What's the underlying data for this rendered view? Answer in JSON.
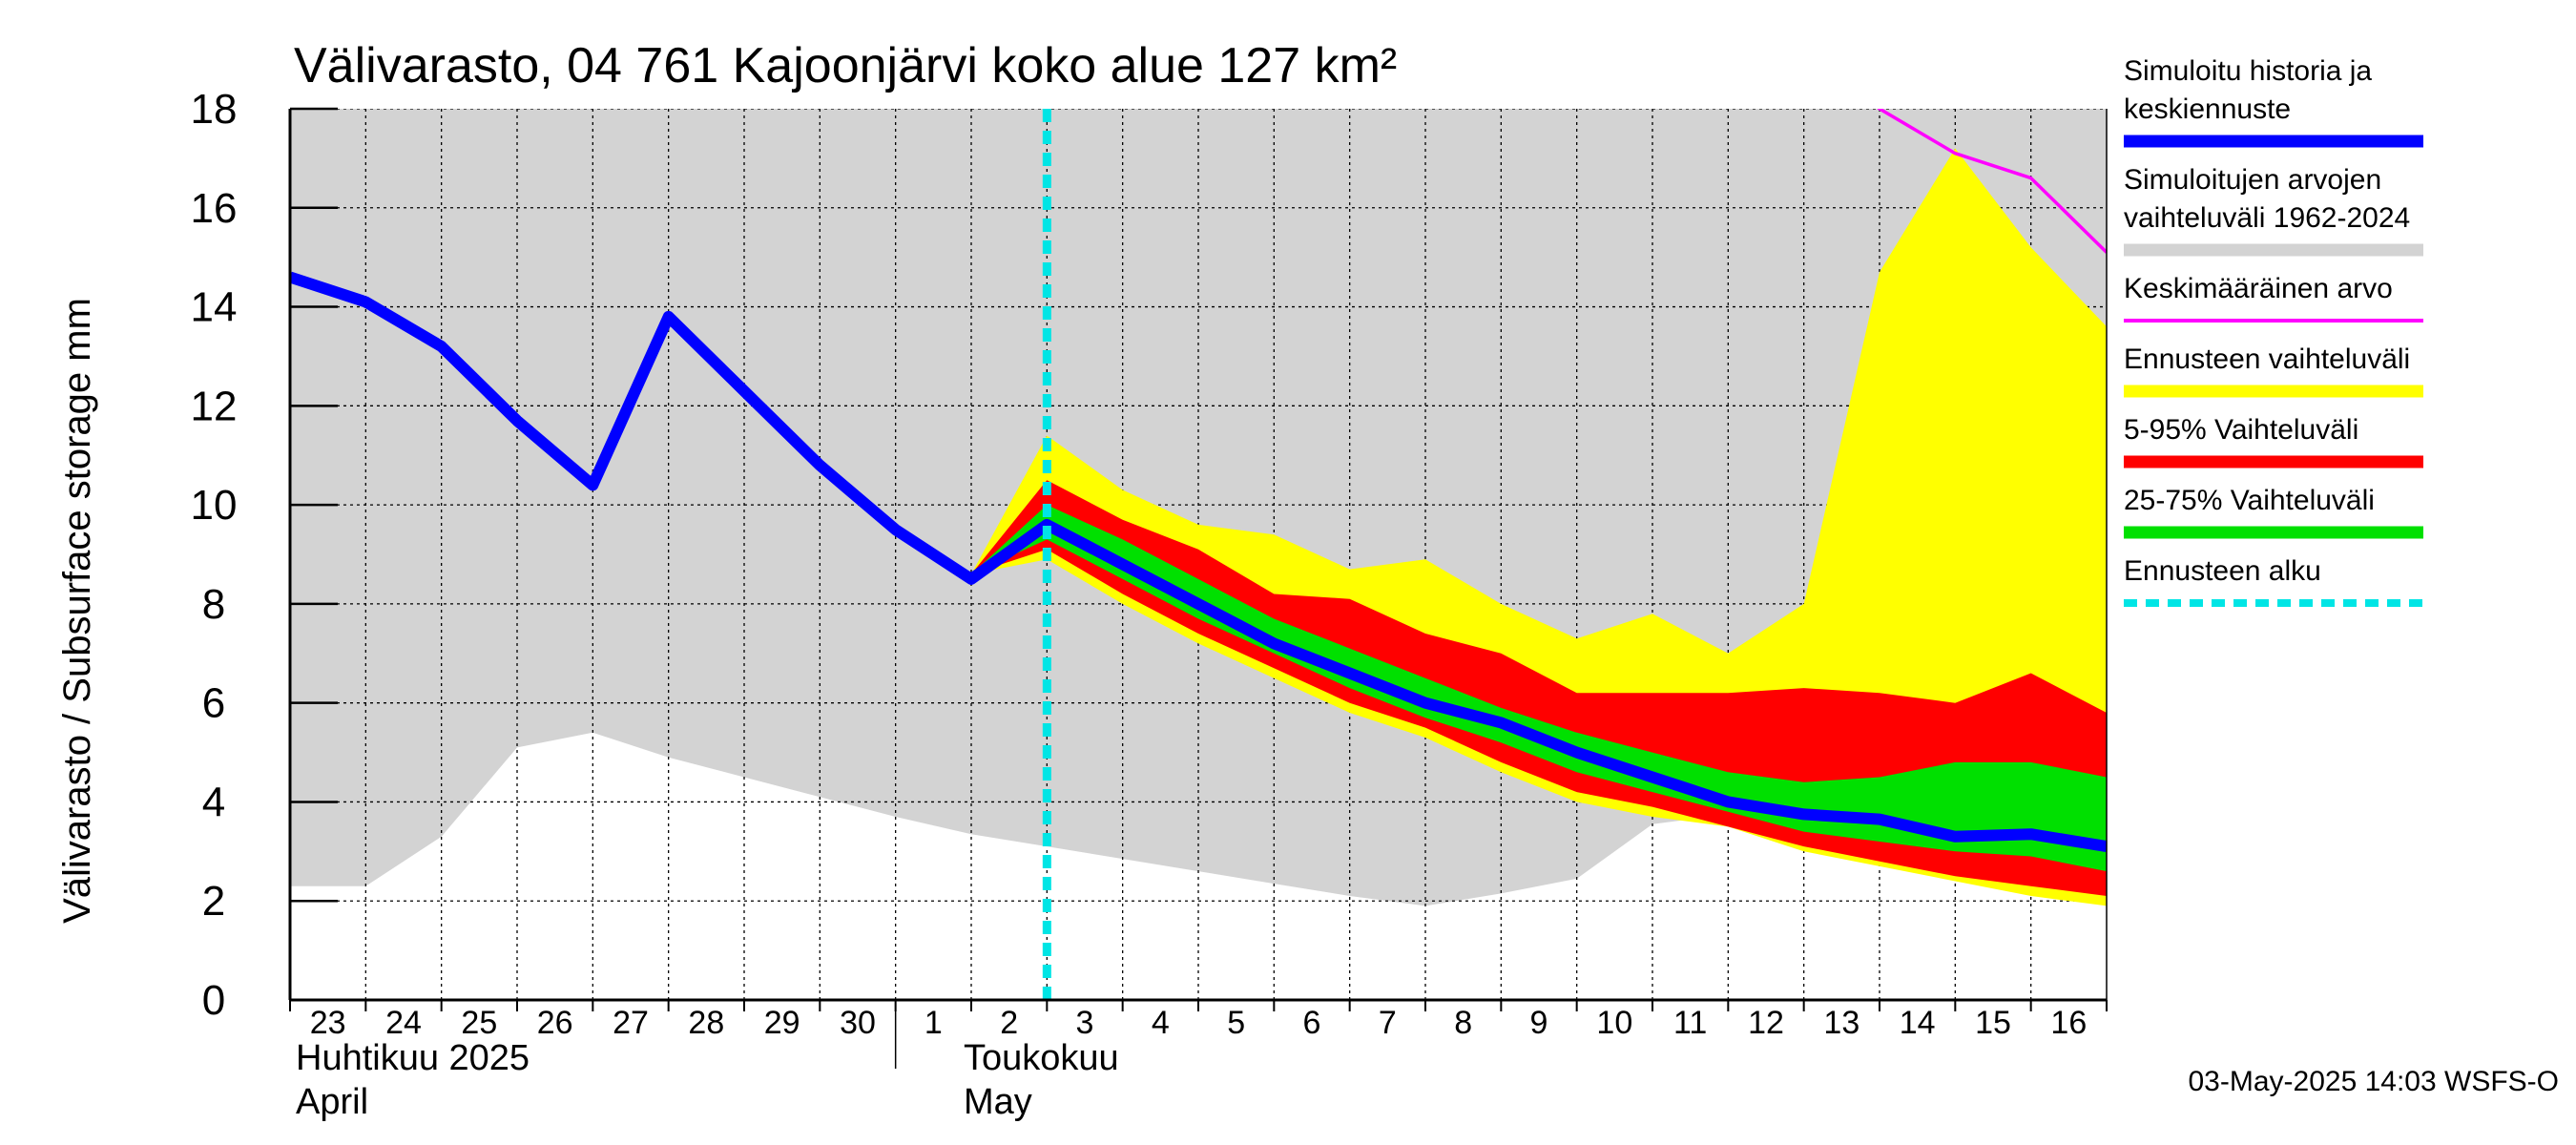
{
  "chart_data": {
    "type": "area",
    "title": "Välivarasto, 04 761 Kajoonjärvi koko alue 127 km²",
    "ylabel": "Välivarasto / Subsurface storage  mm",
    "ylim": [
      0,
      18
    ],
    "y_ticks": [
      0,
      2,
      4,
      6,
      8,
      10,
      12,
      14,
      16,
      18
    ],
    "grid": true,
    "x_tick_labels": [
      "23",
      "24",
      "25",
      "26",
      "27",
      "28",
      "29",
      "30",
      "1",
      "2",
      "3",
      "4",
      "5",
      "6",
      "7",
      "8",
      "9",
      "10",
      "11",
      "12",
      "13",
      "14",
      "15",
      "16"
    ],
    "month_labels": [
      {
        "line1": "Huhtikuu  2025",
        "line2": "April"
      },
      {
        "line1": "Toukokuu",
        "line2": "May"
      }
    ],
    "x_days": [
      "Apr 23",
      "Apr 24",
      "Apr 25",
      "Apr 26",
      "Apr 27",
      "Apr 28",
      "Apr 29",
      "Apr 30",
      "May 1",
      "May 2",
      "May 3",
      "May 4",
      "May 5",
      "May 6",
      "May 7",
      "May 8",
      "May 9",
      "May 10",
      "May 11",
      "May 12",
      "May 13",
      "May 14",
      "May 15",
      "May 16",
      "May 17"
    ],
    "forecast_start": "May 3",
    "historical_range": {
      "name": "Simuloitujen arvojen vaihteluväli 1962-2024",
      "color": "#d3d3d3",
      "upper": [
        18,
        18,
        18,
        18,
        18,
        18,
        18,
        18,
        18,
        18,
        18,
        18,
        18,
        18,
        18,
        18,
        18,
        18,
        18,
        18,
        18,
        18,
        18,
        18,
        18
      ],
      "lower": [
        2.3,
        2.3,
        3.3,
        5.1,
        5.4,
        4.9,
        4.5,
        4.1,
        3.7,
        3.35,
        3.1,
        2.85,
        2.6,
        2.35,
        2.1,
        1.9,
        2.15,
        2.45,
        3.55,
        3.75,
        3.45,
        3.2,
        2.85,
        2.65,
        2.5
      ]
    },
    "mean": {
      "name": "Keskimääräinen arvo",
      "color": "#ff00ff",
      "x_days": [
        "May 13",
        "May 14",
        "May 15",
        "May 16",
        "May 17"
      ],
      "values": [
        19.5,
        18.0,
        17.1,
        16.6,
        15.1
      ]
    },
    "forecast_range": {
      "name": "Ennusteen vaihteluväli",
      "color": "#ffff00",
      "x_days": [
        "May 2",
        "May 3",
        "May 4",
        "May 5",
        "May 6",
        "May 7",
        "May 8",
        "May 9",
        "May 10",
        "May 11",
        "May 12",
        "May 13",
        "May 14",
        "May 15",
        "May 16",
        "May 17"
      ],
      "upper": [
        8.6,
        11.4,
        10.3,
        9.6,
        9.4,
        8.7,
        8.9,
        8.0,
        7.3,
        7.8,
        7.0,
        8.0,
        14.7,
        17.2,
        15.2,
        13.6
      ],
      "lower": [
        8.6,
        8.9,
        8.0,
        7.2,
        6.5,
        5.8,
        5.3,
        4.6,
        4.0,
        3.7,
        3.5,
        3.0,
        2.7,
        2.4,
        2.1,
        1.9
      ]
    },
    "range_5_95": {
      "name": "5-95% Vaihteluväli",
      "color": "#ff0000",
      "x_days": [
        "May 2",
        "May 3",
        "May 4",
        "May 5",
        "May 6",
        "May 7",
        "May 8",
        "May 9",
        "May 10",
        "May 11",
        "May 12",
        "May 13",
        "May 14",
        "May 15",
        "May 16",
        "May 17"
      ],
      "upper": [
        8.6,
        10.5,
        9.7,
        9.1,
        8.2,
        8.1,
        7.4,
        7.0,
        6.2,
        6.2,
        6.2,
        6.3,
        6.2,
        6.0,
        6.6,
        5.8
      ],
      "lower": [
        8.6,
        9.1,
        8.2,
        7.4,
        6.7,
        6.0,
        5.5,
        4.8,
        4.2,
        3.9,
        3.5,
        3.1,
        2.8,
        2.5,
        2.3,
        2.1
      ]
    },
    "range_25_75": {
      "name": "25-75% Vaihteluväli",
      "color": "#00e000",
      "x_days": [
        "May 2",
        "May 3",
        "May 4",
        "May 5",
        "May 6",
        "May 7",
        "May 8",
        "May 9",
        "May 10",
        "May 11",
        "May 12",
        "May 13",
        "May 14",
        "May 15",
        "May 16",
        "May 17"
      ],
      "upper": [
        8.6,
        10.0,
        9.3,
        8.5,
        7.7,
        7.1,
        6.5,
        5.9,
        5.4,
        5.0,
        4.6,
        4.4,
        4.5,
        4.8,
        4.8,
        4.5
      ],
      "lower": [
        8.6,
        9.3,
        8.5,
        7.7,
        7.0,
        6.3,
        5.7,
        5.2,
        4.6,
        4.2,
        3.8,
        3.4,
        3.2,
        3.0,
        2.9,
        2.6
      ]
    },
    "simulated": {
      "name": "Simuloitu historia ja keskiennuste",
      "color": "#0000ff",
      "values": [
        14.6,
        14.1,
        13.2,
        11.7,
        10.4,
        13.8,
        12.3,
        10.8,
        9.5,
        8.5,
        9.6,
        8.8,
        8.0,
        7.2,
        6.6,
        6.0,
        5.6,
        5.0,
        4.5,
        4.0,
        3.75,
        3.65,
        3.3,
        3.35,
        3.1
      ]
    }
  },
  "legend": {
    "items": [
      {
        "lines": [
          "Simuloitu historia ja",
          "keskiennuste"
        ],
        "color": "#0000ff",
        "style": "solid"
      },
      {
        "lines": [
          "Simuloitujen arvojen",
          "vaihteluväli 1962-2024"
        ],
        "color": "#d3d3d3",
        "style": "solid"
      },
      {
        "lines": [
          "Keskimääräinen arvo"
        ],
        "color": "#ff00ff",
        "style": "thin"
      },
      {
        "lines": [
          "Ennusteen vaihteluväli"
        ],
        "color": "#ffff00",
        "style": "solid"
      },
      {
        "lines": [
          "5-95% Vaihteluväli"
        ],
        "color": "#ff0000",
        "style": "solid"
      },
      {
        "lines": [
          "25-75% Vaihteluväli"
        ],
        "color": "#00e000",
        "style": "solid"
      },
      {
        "lines": [
          "Ennusteen alku"
        ],
        "color": "#00e5e5",
        "style": "dashed"
      }
    ]
  },
  "footer": "03-May-2025 14:03 WSFS-O"
}
